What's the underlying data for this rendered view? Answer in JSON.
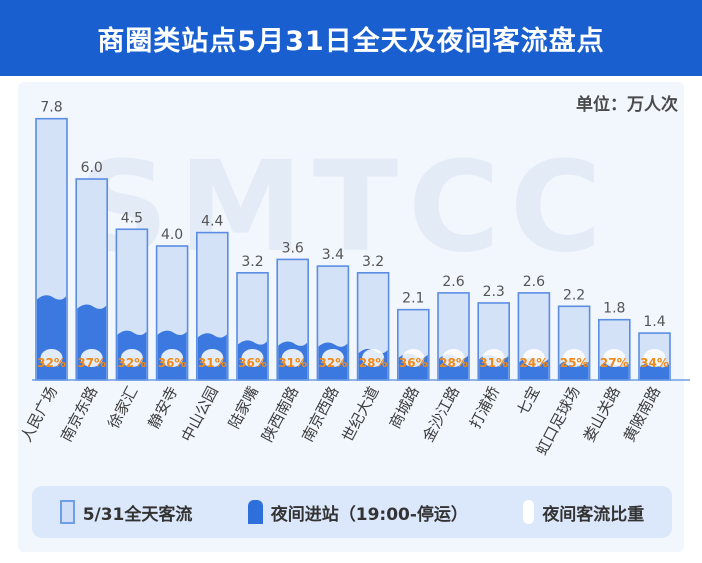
{
  "title": "商圈类站点5月31日全天及夜间客流盘点",
  "unit_label": "单位：万人次",
  "watermark": "SMTCC",
  "legend": {
    "total": "5/31全天客流",
    "night": "夜间进站（19:00-停运）",
    "share": "夜间客流比重"
  },
  "colors": {
    "title_bg": "#1a5fd0",
    "bar_fill": "#d4e2f8",
    "bar_stroke": "#5b8ee3",
    "night_fill": "#2e6fdc",
    "pct_text": "#f08a1a",
    "value_text": "#555555",
    "label_text": "#3d3d3d"
  },
  "chart_data": {
    "type": "bar",
    "unit": "万人次",
    "categories": [
      "人民广场",
      "南京东路",
      "徐家汇",
      "静安寺",
      "中山公园",
      "陆家嘴",
      "陕西南路",
      "南京西路",
      "世纪大道",
      "商城路",
      "金沙江路",
      "打浦桥",
      "七宝",
      "虹口足球场",
      "娄山关路",
      "黄陂南路"
    ],
    "series": [
      {
        "name": "5/31全天客流",
        "values": [
          7.8,
          6.0,
          4.5,
          4.0,
          4.4,
          3.2,
          3.6,
          3.4,
          3.2,
          2.1,
          2.6,
          2.3,
          2.6,
          2.2,
          1.8,
          1.4
        ]
      },
      {
        "name": "夜间客流比重",
        "values": [
          32,
          37,
          32,
          36,
          31,
          36,
          31,
          32,
          28,
          36,
          28,
          31,
          24,
          25,
          27,
          34
        ]
      }
    ],
    "value_labels": [
      "7.8",
      "6.0",
      "4.5",
      "4.0",
      "4.4",
      "3.2",
      "3.6",
      "3.4",
      "3.2",
      "2.1",
      "2.6",
      "2.3",
      "2.6",
      "2.2",
      "1.8",
      "1.4"
    ],
    "pct_labels": [
      "32%",
      "37%",
      "32%",
      "36%",
      "31%",
      "36%",
      "31%",
      "32%",
      "28%",
      "36%",
      "28%",
      "31%",
      "24%",
      "25%",
      "27%",
      "34%"
    ],
    "ylim": [
      0,
      8
    ]
  }
}
